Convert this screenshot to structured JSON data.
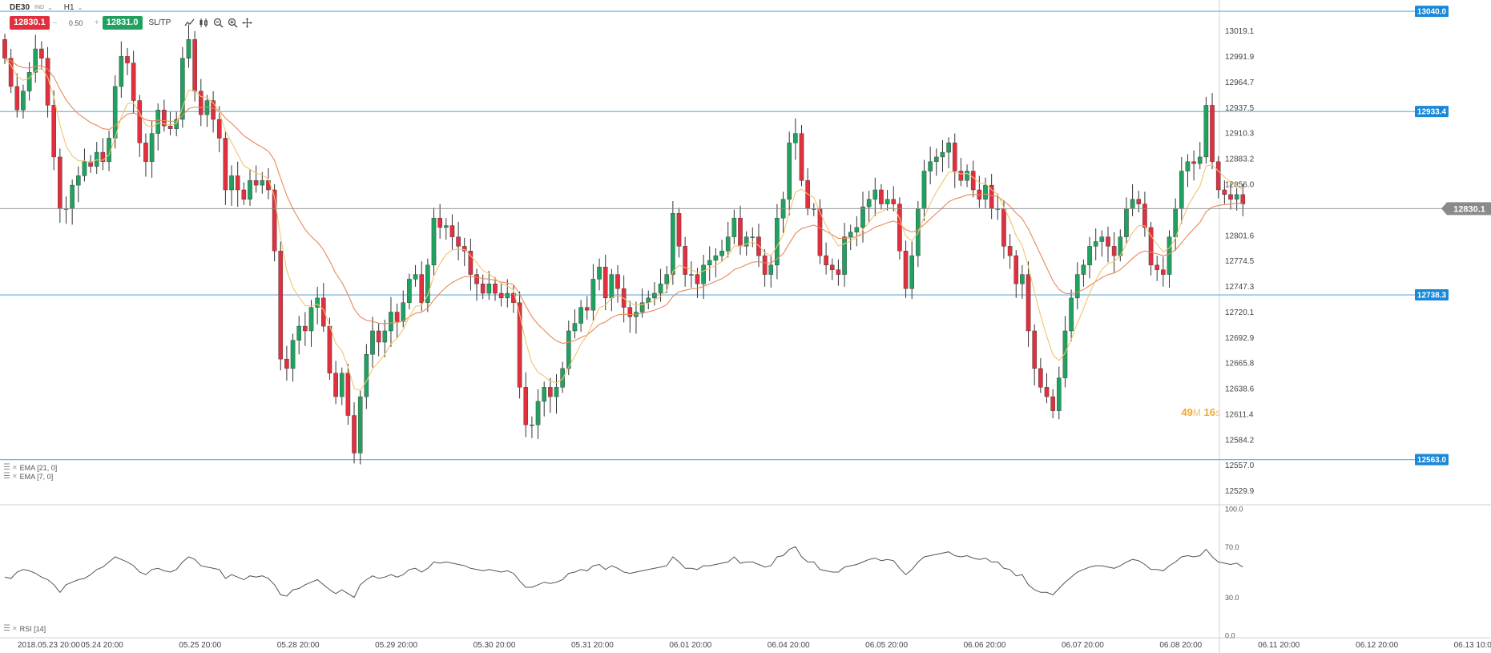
{
  "toolbar": {
    "symbol": "DE30",
    "symbol_type": "IND",
    "timeframe": "H1",
    "sell_price": "12830.1",
    "volume": "0.50",
    "volume_minus": "–",
    "volume_plus": "+",
    "buy_price": "12831.0",
    "sltp_label": "SL/TP",
    "tools": [
      "line-chart-icon",
      "candle-chart-icon",
      "zoom-out-icon",
      "zoom-in-icon",
      "crosshair-icon"
    ]
  },
  "indicators": {
    "ema21_label": "EMA [21, 0]",
    "ema7_label": "EMA [7, 0]",
    "rsi_label": "RSI [14]"
  },
  "countdown": {
    "minutes": "49",
    "minutes_unit": "M",
    "seconds": "16",
    "seconds_unit": "s"
  },
  "colors": {
    "bull": "#21a160",
    "bear": "#e0303f",
    "ema7": "#f2c46e",
    "ema21": "#e8895a",
    "hline": "#6aaad8",
    "label_blue": "#1a88d8",
    "current_price": "#8a8a8a",
    "rsi_line": "#555555"
  },
  "chart_data": [
    {
      "type": "candlestick",
      "symbol": "DE30",
      "timeframe": "H1",
      "ylim": [
        12515,
        13052
      ],
      "y_ticks": [
        "13019.1",
        "12991.9",
        "12964.7",
        "12937.5",
        "12910.3",
        "12883.2",
        "12856.0",
        "12801.6",
        "12774.5",
        "12747.3",
        "12720.1",
        "12692.9",
        "12665.8",
        "12638.6",
        "12611.4",
        "12584.2",
        "12557.0",
        "12529.9"
      ],
      "x_ticks": [
        "2018.05.23 20:00",
        "05.24 20:00",
        "05.25 20:00",
        "05.28 20:00",
        "05.29 20:00",
        "05.30 20:00",
        "05.31 20:00",
        "06.01 20:00",
        "06.04 20:00",
        "06.05 20:00",
        "06.06 20:00",
        "06.07 20:00",
        "06.08 20:00",
        "06.11 20:00",
        "06.12 20:00",
        "06.13 10:00"
      ],
      "x_tick_bar_index": [
        0,
        16,
        32,
        48,
        64,
        80,
        96,
        112,
        128,
        144,
        160,
        176,
        192,
        208,
        224,
        240
      ],
      "horizontal_lines": [
        {
          "label": "13040.0",
          "value": 13040.0
        },
        {
          "label": "12933.4",
          "value": 12933.4
        },
        {
          "label": "12738.3",
          "value": 12738.3
        },
        {
          "label": "12563.0",
          "value": 12563.0
        }
      ],
      "current_price": {
        "label": "12830.1",
        "value": 12830.1
      },
      "close_prices": [
        12990,
        12960,
        12935,
        12955,
        12975,
        13000,
        12990,
        12940,
        12885,
        12830,
        12830,
        12855,
        12865,
        12880,
        12875,
        12890,
        12880,
        12905,
        12960,
        12992,
        12985,
        12945,
        12900,
        12880,
        12910,
        12935,
        12918,
        12915,
        12925,
        12990,
        13010,
        12955,
        12930,
        12945,
        12925,
        12905,
        12850,
        12865,
        12850,
        12840,
        12860,
        12855,
        12860,
        12850,
        12785,
        12670,
        12660,
        12690,
        12705,
        12700,
        12725,
        12735,
        12705,
        12655,
        12630,
        12655,
        12610,
        12570,
        12630,
        12675,
        12700,
        12688,
        12700,
        12720,
        12710,
        12730,
        12755,
        12760,
        12730,
        12770,
        12820,
        12810,
        12812,
        12800,
        12790,
        12785,
        12760,
        12750,
        12740,
        12750,
        12740,
        12735,
        12740,
        12730,
        12640,
        12600,
        12600,
        12625,
        12640,
        12630,
        12640,
        12660,
        12700,
        12708,
        12725,
        12722,
        12755,
        12768,
        12735,
        12760,
        12745,
        12725,
        12715,
        12720,
        12730,
        12735,
        12740,
        12750,
        12760,
        12825,
        12790,
        12760,
        12760,
        12750,
        12770,
        12775,
        12780,
        12785,
        12800,
        12820,
        12790,
        12800,
        12800,
        12780,
        12760,
        12770,
        12820,
        12840,
        12900,
        12910,
        12860,
        12830,
        12830,
        12780,
        12770,
        12765,
        12760,
        12800,
        12805,
        12810,
        12832,
        12840,
        12850,
        12835,
        12840,
        12835,
        12785,
        12745,
        12780,
        12830,
        12870,
        12880,
        12885,
        12890,
        12900,
        12870,
        12860,
        12870,
        12850,
        12840,
        12855,
        12830,
        12830,
        12790,
        12780,
        12750,
        12760,
        12700,
        12660,
        12640,
        12630,
        12615,
        12650,
        12700,
        12735,
        12760,
        12770,
        12790,
        12795,
        12800,
        12790,
        12780,
        12800,
        12830,
        12840,
        12835,
        12810,
        12770,
        12765,
        12760,
        12800,
        12830,
        12870,
        12880,
        12878,
        12885,
        12940,
        12880,
        12850,
        12845,
        12840,
        12845,
        12835
      ],
      "rsi": {
        "ylim": [
          0,
          100
        ],
        "y_ticks": [
          "100.0",
          "70.0",
          "30.0",
          "0.0"
        ],
        "values": [
          46,
          45,
          50,
          52,
          51,
          49,
          46,
          44,
          40,
          34,
          40,
          42,
          44,
          45,
          48,
          52,
          54,
          58,
          62,
          60,
          58,
          55,
          50,
          48,
          52,
          53,
          51,
          50,
          52,
          58,
          62,
          60,
          55,
          54,
          53,
          52,
          45,
          48,
          46,
          44,
          47,
          46,
          47,
          45,
          40,
          32,
          31,
          36,
          37,
          40,
          42,
          44,
          40,
          36,
          33,
          36,
          33,
          30,
          40,
          44,
          47,
          45,
          46,
          48,
          46,
          48,
          52,
          53,
          50,
          53,
          58,
          57,
          58,
          57,
          56,
          55,
          53,
          52,
          51,
          52,
          51,
          50,
          51,
          49,
          43,
          38,
          38,
          40,
          42,
          41,
          42,
          44,
          49,
          50,
          52,
          51,
          55,
          56,
          52,
          55,
          53,
          50,
          49,
          50,
          51,
          52,
          53,
          54,
          55,
          62,
          58,
          53,
          53,
          52,
          55,
          55,
          56,
          57,
          58,
          62,
          57,
          58,
          58,
          56,
          54,
          55,
          62,
          63,
          68,
          70,
          62,
          58,
          58,
          52,
          51,
          50,
          50,
          54,
          55,
          56,
          58,
          60,
          61,
          59,
          60,
          59,
          53,
          48,
          52,
          58,
          62,
          63,
          64,
          65,
          66,
          63,
          62,
          63,
          61,
          60,
          61,
          58,
          58,
          53,
          52,
          47,
          48,
          40,
          36,
          34,
          34,
          32,
          37,
          42,
          46,
          50,
          52,
          54,
          55,
          55,
          54,
          53,
          55,
          58,
          60,
          59,
          56,
          52,
          52,
          51,
          55,
          58,
          62,
          63,
          62,
          63,
          68,
          62,
          58,
          57,
          56,
          57,
          54
        ]
      }
    }
  ]
}
